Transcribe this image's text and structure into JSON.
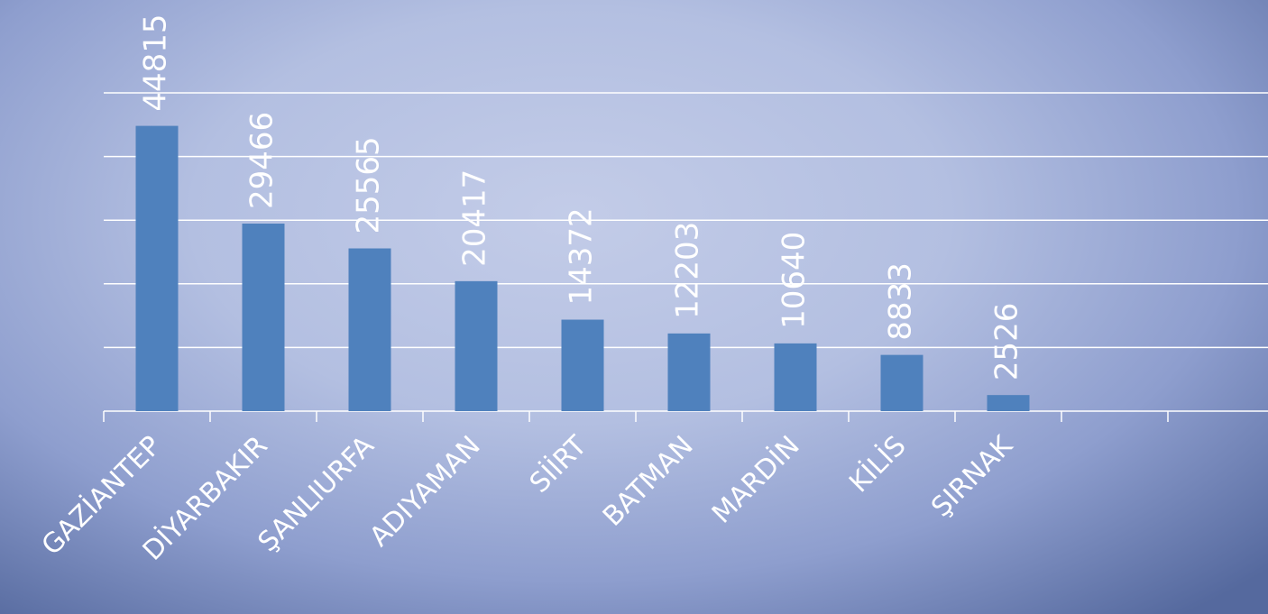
{
  "chart_data": {
    "type": "bar",
    "categories": [
      "GAZİANTEP",
      "DİYARBAKIR",
      "ŞANLIURFA",
      "ADIYAMAN",
      "SİİRT",
      "BATMAN",
      "MARDİN",
      "KİLİS",
      "ŞIRNAK",
      null,
      null
    ],
    "values": [
      44815,
      29466,
      25565,
      20417,
      14372,
      12203,
      10640,
      8833,
      2526,
      null,
      null
    ],
    "color": "#4f81bd",
    "ylim": [
      0,
      50000
    ],
    "yticks": [
      0,
      10000,
      20000,
      30000,
      40000,
      50000
    ],
    "grid": true
  }
}
